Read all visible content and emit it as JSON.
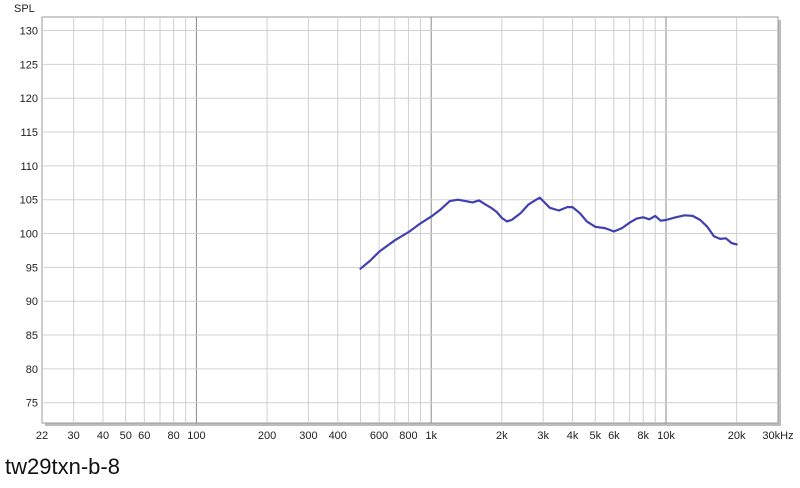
{
  "chart_data": {
    "type": "line",
    "title": "",
    "ylabel": "SPL",
    "xlabel": "",
    "xscale": "log",
    "xlim": [
      22,
      30000
    ],
    "ylim": [
      72,
      132
    ],
    "grid": true,
    "x_tick_labels": [
      {
        "v": 22,
        "t": "22"
      },
      {
        "v": 30,
        "t": "30"
      },
      {
        "v": 40,
        "t": "40"
      },
      {
        "v": 50,
        "t": "50"
      },
      {
        "v": 60,
        "t": "60"
      },
      {
        "v": 80,
        "t": "80"
      },
      {
        "v": 100,
        "t": "100"
      },
      {
        "v": 200,
        "t": "200"
      },
      {
        "v": 300,
        "t": "300"
      },
      {
        "v": 400,
        "t": "400"
      },
      {
        "v": 600,
        "t": "600"
      },
      {
        "v": 800,
        "t": "800"
      },
      {
        "v": 1000,
        "t": "1k"
      },
      {
        "v": 2000,
        "t": "2k"
      },
      {
        "v": 3000,
        "t": "3k"
      },
      {
        "v": 4000,
        "t": "4k"
      },
      {
        "v": 5000,
        "t": "5k"
      },
      {
        "v": 6000,
        "t": "6k"
      },
      {
        "v": 8000,
        "t": "8k"
      },
      {
        "v": 10000,
        "t": "10k"
      },
      {
        "v": 20000,
        "t": "20k"
      },
      {
        "v": 30000,
        "t": "30kHz"
      }
    ],
    "y_ticks": [
      75,
      80,
      85,
      90,
      95,
      100,
      105,
      110,
      115,
      120,
      125,
      130
    ],
    "series": [
      {
        "name": "",
        "color": "#4040b0",
        "x": [
          500,
          550,
          600,
          650,
          700,
          800,
          900,
          1000,
          1100,
          1200,
          1300,
          1400,
          1500,
          1600,
          1700,
          1800,
          1900,
          2000,
          2100,
          2200,
          2400,
          2600,
          2800,
          2900,
          3000,
          3200,
          3500,
          3800,
          4000,
          4300,
          4600,
          5000,
          5500,
          6000,
          6500,
          7000,
          7500,
          8000,
          8500,
          9000,
          9500,
          10000,
          11000,
          12000,
          13000,
          14000,
          15000,
          16000,
          17000,
          18000,
          19000,
          20000
        ],
        "y": [
          94.8,
          96.0,
          97.3,
          98.2,
          99.0,
          100.2,
          101.5,
          102.5,
          103.6,
          104.8,
          105.0,
          104.8,
          104.6,
          104.9,
          104.3,
          103.8,
          103.2,
          102.3,
          101.8,
          102.0,
          103.0,
          104.3,
          105.0,
          105.3,
          104.8,
          103.8,
          103.4,
          103.9,
          103.9,
          103.0,
          101.8,
          101.0,
          100.8,
          100.3,
          100.8,
          101.6,
          102.2,
          102.4,
          102.1,
          102.6,
          101.9,
          102.0,
          102.4,
          102.7,
          102.6,
          102.0,
          101.0,
          99.6,
          99.2,
          99.3,
          98.6,
          98.4
        ]
      }
    ]
  },
  "caption": "tw29txn-b-8"
}
